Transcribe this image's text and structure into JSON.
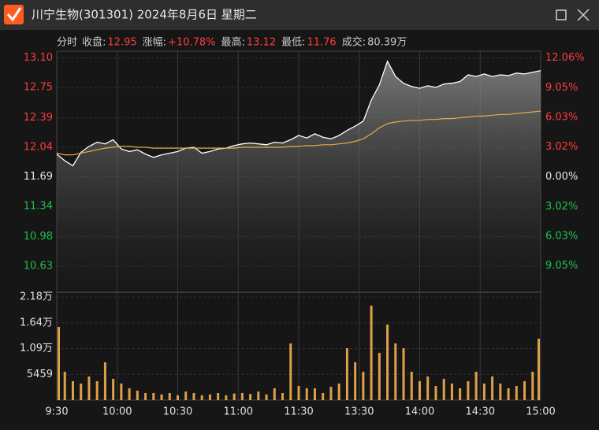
{
  "window": {
    "title": "川宁生物(301301) 2024年8月6日 星期二"
  },
  "info": {
    "mode": "分时",
    "items": [
      {
        "label": "收盘:",
        "value": "12.95",
        "color": "#ff3c3c"
      },
      {
        "label": "涨幅:",
        "value": "+10.78%",
        "color": "#ff3c3c"
      },
      {
        "label": "最高:",
        "value": "13.12",
        "color": "#ff3c3c"
      },
      {
        "label": "最低:",
        "value": "11.76",
        "color": "#ff3c3c"
      },
      {
        "label": "成交:",
        "value": "80.39万",
        "color": "#c8c8c8"
      }
    ]
  },
  "chart_data": [
    {
      "type": "line",
      "area": true,
      "up_color": "#ff3c3c",
      "down_color": "#1fc24a",
      "flat_color": "#e6e6e6",
      "xlim": [
        0,
        240
      ],
      "ylim": [
        10.33,
        13.18
      ],
      "y2lim": [
        -11.63,
        12.75
      ],
      "yticks": [
        {
          "value": 13.1,
          "label": "13.10"
        },
        12.75,
        12.39,
        12.04,
        11.69,
        11.34,
        10.98,
        10.63
      ],
      "y2ticks": [
        {
          "value": 12.06,
          "label": "12.06%"
        },
        {
          "value": 9.05,
          "label": "9.05%"
        },
        {
          "value": 6.03,
          "label": "6.03%"
        },
        {
          "value": 3.02,
          "label": "3.02%"
        },
        {
          "value": 0,
          "label": "0.00%"
        },
        {
          "value": -3.02,
          "label": "3.02%"
        },
        {
          "value": -6.03,
          "label": "6.03%"
        },
        {
          "value": -9.05,
          "label": "9.05%"
        }
      ],
      "x": [
        0,
        4,
        8,
        12,
        16,
        20,
        24,
        28,
        32,
        36,
        40,
        44,
        48,
        52,
        56,
        60,
        64,
        68,
        72,
        76,
        80,
        84,
        88,
        92,
        96,
        100,
        104,
        108,
        112,
        116,
        120,
        124,
        128,
        132,
        136,
        140,
        144,
        148,
        152,
        156,
        160,
        164,
        168,
        172,
        176,
        180,
        184,
        188,
        192,
        196,
        200,
        204,
        208,
        212,
        216,
        220,
        224,
        228,
        232,
        236,
        240
      ],
      "series": [
        {
          "color": "#ffffff",
          "values": [
            11.96,
            11.88,
            11.82,
            11.98,
            12.05,
            12.1,
            12.08,
            12.13,
            12.02,
            11.99,
            12.01,
            11.96,
            11.92,
            11.95,
            11.97,
            11.99,
            12.03,
            12.04,
            11.97,
            11.99,
            12.02,
            12.03,
            12.06,
            12.08,
            12.09,
            12.08,
            12.07,
            12.1,
            12.09,
            12.13,
            12.18,
            12.15,
            12.2,
            12.16,
            12.14,
            12.18,
            12.24,
            12.29,
            12.35,
            12.6,
            12.78,
            13.06,
            12.88,
            12.8,
            12.76,
            12.74,
            12.77,
            12.75,
            12.79,
            12.8,
            12.82,
            12.9,
            12.88,
            12.91,
            12.88,
            12.9,
            12.89,
            12.92,
            12.91,
            12.93,
            12.95
          ]
        },
        {
          "color": "#e8a84a",
          "values": [
            11.97,
            11.95,
            11.95,
            11.97,
            11.99,
            12.01,
            12.03,
            12.04,
            12.05,
            12.05,
            12.04,
            12.04,
            12.03,
            12.03,
            12.03,
            12.03,
            12.03,
            12.03,
            12.03,
            12.03,
            12.03,
            12.03,
            12.03,
            12.04,
            12.04,
            12.04,
            12.04,
            12.04,
            12.04,
            12.05,
            12.05,
            12.06,
            12.06,
            12.07,
            12.07,
            12.08,
            12.09,
            12.11,
            12.14,
            12.2,
            12.27,
            12.32,
            12.34,
            12.35,
            12.36,
            12.36,
            12.37,
            12.37,
            12.38,
            12.38,
            12.39,
            12.4,
            12.41,
            12.41,
            12.42,
            12.43,
            12.43,
            12.44,
            12.45,
            12.46,
            12.47
          ]
        }
      ]
    },
    {
      "type": "bar",
      "color": "#e0a048",
      "xlim": [
        0,
        240
      ],
      "ylim": [
        0,
        22700
      ],
      "xticks": [
        {
          "value": 0,
          "label": "9:30"
        },
        {
          "value": 30,
          "label": "10:00"
        },
        {
          "value": 60,
          "label": "10:30"
        },
        {
          "value": 90,
          "label": "11:00"
        },
        {
          "value": 120,
          "label": "11:30"
        },
        {
          "value": 150,
          "label": "13:30"
        },
        {
          "value": 180,
          "label": "14:00"
        },
        {
          "value": 210,
          "label": "14:30"
        },
        {
          "value": 240,
          "label": "15:00"
        }
      ],
      "yticks": [
        {
          "value": 21836,
          "label": "2.18万"
        },
        {
          "value": 16377,
          "label": "1.64万"
        },
        {
          "value": 10918,
          "label": "1.09万"
        },
        5459
      ],
      "x": [
        0,
        4,
        8,
        12,
        16,
        20,
        24,
        28,
        32,
        36,
        40,
        44,
        48,
        52,
        56,
        60,
        64,
        68,
        72,
        76,
        80,
        84,
        88,
        92,
        96,
        100,
        104,
        108,
        112,
        116,
        120,
        124,
        128,
        132,
        136,
        140,
        144,
        148,
        152,
        156,
        160,
        164,
        168,
        172,
        176,
        180,
        184,
        188,
        192,
        196,
        200,
        204,
        208,
        212,
        216,
        220,
        224,
        228,
        232,
        236,
        240
      ],
      "values": [
        15500,
        6000,
        4000,
        3500,
        5000,
        4000,
        8000,
        4500,
        3500,
        2500,
        2000,
        1500,
        1500,
        1200,
        1500,
        1000,
        1800,
        1500,
        1000,
        1200,
        1500,
        1000,
        1400,
        1500,
        1300,
        1800,
        1200,
        2500,
        1500,
        12000,
        3000,
        2500,
        2500,
        1500,
        2800,
        3500,
        11000,
        8000,
        6000,
        20000,
        10000,
        16000,
        12000,
        11000,
        6000,
        4000,
        5000,
        3000,
        4500,
        3500,
        2500,
        4000,
        6000,
        3500,
        5000,
        3500,
        2500,
        3000,
        4000,
        6000,
        13000
      ]
    }
  ]
}
